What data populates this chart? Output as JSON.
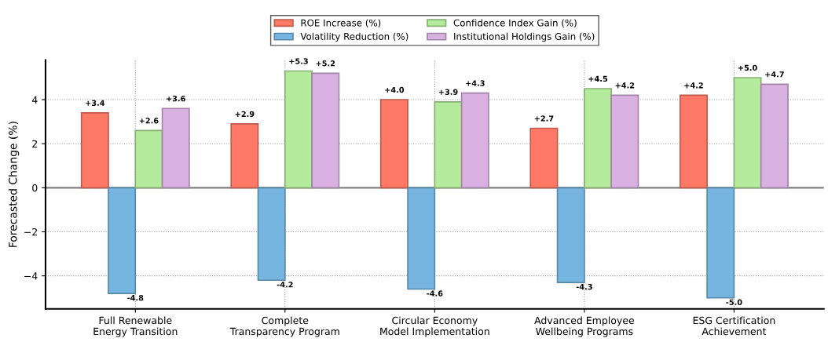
{
  "chart_data": {
    "type": "bar",
    "ylabel": "Forecasted Change (%)",
    "categories": [
      "Full Renewable\nEnergy Transition",
      "Complete\nTransparency Program",
      "Circular Economy\nModel Implementation",
      "Advanced Employee\nWellbeing Programs",
      "ESG Certification\nAchievement"
    ],
    "series": [
      {
        "name": "ROE Increase (%)",
        "color": "#ff7966",
        "values": [
          3.4,
          2.9,
          4.0,
          2.7,
          4.2
        ],
        "value_labels": [
          "+3.4",
          "+2.9",
          "+4.0",
          "+2.7",
          "+4.2"
        ]
      },
      {
        "name": "Volatility Reduction (%)",
        "color": "#75b5e0",
        "values": [
          -4.8,
          -4.2,
          -4.6,
          -4.3,
          -5.0
        ],
        "value_labels": [
          "-4.8",
          "-4.2",
          "-4.6",
          "-4.3",
          "-5.0"
        ]
      },
      {
        "name": "Confidence Index Gain (%)",
        "color": "#b5eb9c",
        "values": [
          2.6,
          5.3,
          3.9,
          4.5,
          5.0
        ],
        "value_labels": [
          "+2.6",
          "+5.3",
          "+3.9",
          "+4.5",
          "+5.0"
        ]
      },
      {
        "name": "Institutional Holdings Gain (%)",
        "color": "#d8b1e0",
        "values": [
          3.6,
          5.2,
          4.3,
          4.2,
          4.7
        ],
        "value_labels": [
          "+3.6",
          "+5.2",
          "+4.3",
          "+4.2",
          "+4.7"
        ]
      }
    ],
    "ylim": [
      -5.5,
      5.8
    ],
    "yticks": [
      {
        "value": -4,
        "label": "−4"
      },
      {
        "value": -2,
        "label": "−2"
      },
      0,
      2,
      4
    ],
    "grid": true,
    "legend": "top"
  }
}
